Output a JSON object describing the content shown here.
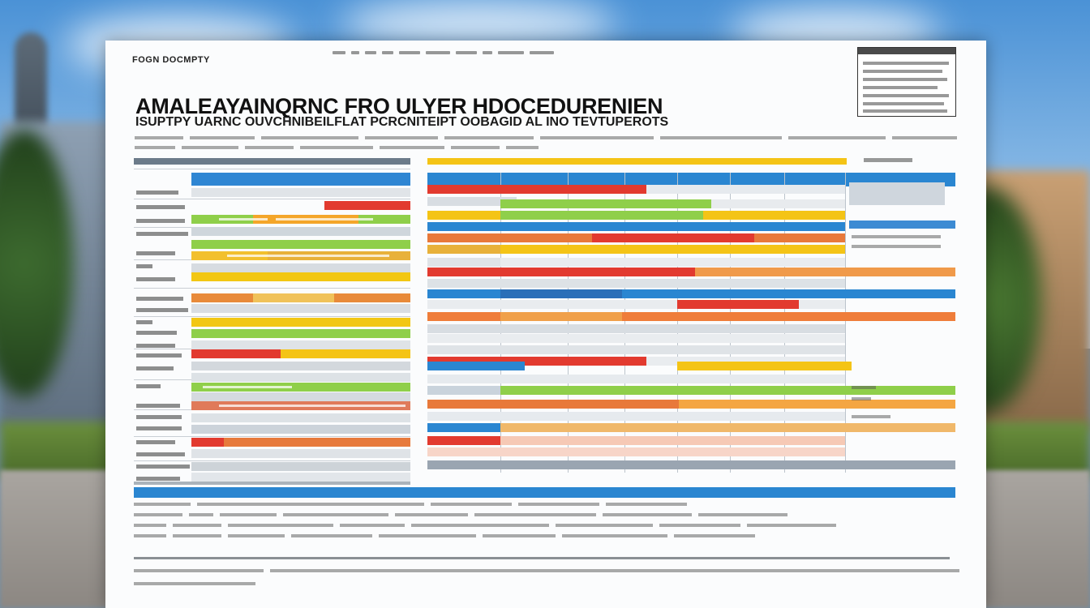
{
  "document": {
    "label": "FOGN DOCMPTY",
    "title": "AMALEAYAINQRNC FRO ULYER HDOCEDURENIEN",
    "subtitle": "ISUPTPY UARNC OUVCHNIBEILFLAT PCRCNITEIPT OOBAGID AL INO TEVTUPEROTS"
  },
  "colors": {
    "blue": "#2a86d1",
    "yellow": "#f4c416",
    "green": "#8fcf4a",
    "red": "#e23a2f",
    "orange": "#ef7d3a",
    "gray": "#9aa5b1"
  }
}
